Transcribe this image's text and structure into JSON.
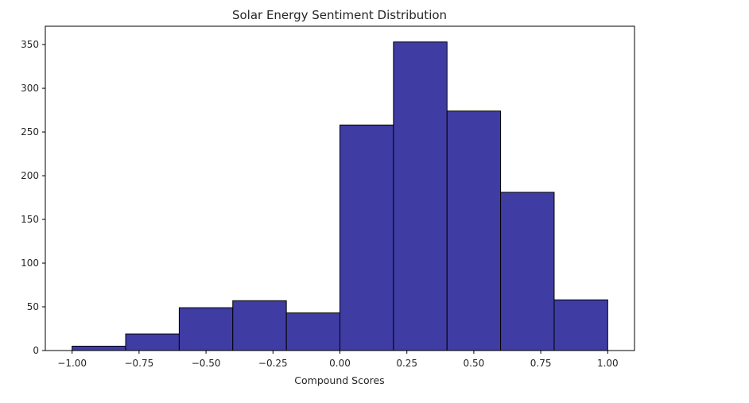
{
  "chart_data": {
    "type": "bar",
    "title": "Solar Energy Sentiment Distribution",
    "xlabel": "Compound Scores",
    "ylabel": "",
    "bin_edges": [
      -1.0,
      -0.8,
      -0.6,
      -0.4,
      -0.2,
      0.0,
      0.2,
      0.4,
      0.6,
      0.8,
      1.0
    ],
    "values": [
      5,
      19,
      49,
      57,
      43,
      258,
      353,
      274,
      181,
      58
    ],
    "xlim": [
      -1.1,
      1.1
    ],
    "ylim": [
      0,
      371
    ],
    "x_ticks": [
      -1.0,
      -0.75,
      -0.5,
      -0.25,
      0.0,
      0.25,
      0.5,
      0.75,
      1.0
    ],
    "x_tick_labels": [
      "−1.00",
      "−0.75",
      "−0.50",
      "−0.25",
      "0.00",
      "0.25",
      "0.50",
      "0.75",
      "1.00"
    ],
    "y_ticks": [
      0,
      50,
      100,
      150,
      200,
      250,
      300,
      350
    ],
    "y_tick_labels": [
      "0",
      "50",
      "100",
      "150",
      "200",
      "250",
      "300",
      "350"
    ],
    "grid": false,
    "legend": "none",
    "bar_color": "#3f3da3",
    "edge_color": "#000000"
  }
}
